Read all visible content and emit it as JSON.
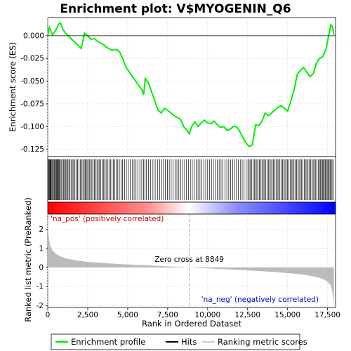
{
  "chart_data": {
    "type": "line",
    "title": "Enrichment plot: V$MYOGENIN_Q6",
    "ylabel_top": "Enrichment score (ES)",
    "ylabel_bottom": "Ranked list metric (PreRanked)",
    "xlabel": "Rank in Ordered Dataset",
    "x_ticks": [
      0,
      2500,
      5000,
      7500,
      10000,
      12500,
      15000,
      17500
    ],
    "x_tick_labels": [
      "0",
      "2,500",
      "5,000",
      "7,500",
      "10,000",
      "12,500",
      "15,000",
      "17,500"
    ],
    "es_y_ticks": [
      0.0,
      -0.025,
      -0.05,
      -0.075,
      -0.1,
      -0.125
    ],
    "es_y_tick_labels": [
      "0.000",
      "-0.025",
      "-0.050",
      "-0.075",
      "-0.100",
      "-0.125"
    ],
    "metric_y_ticks": [
      2,
      1,
      0,
      -1,
      -2
    ],
    "metric_y_tick_labels": [
      "2",
      "1",
      "0",
      "-1",
      "-2"
    ],
    "xlim": [
      0,
      18000
    ],
    "es_ylim": [
      -0.133,
      0.02
    ],
    "metric_ylim": [
      -2.1,
      2.8
    ],
    "total_genes": 17900,
    "zero_cross": 8849,
    "zero_cross_label": "Zero cross at 8849",
    "pos_label": "'na_pos' (positively correlated)",
    "neg_label": "'na_neg' (negatively correlated)",
    "enrichment_profile": {
      "x": [
        0,
        100,
        300,
        500,
        700,
        800,
        950,
        1100,
        1300,
        1500,
        1700,
        1900,
        2100,
        2300,
        2500,
        2700,
        2900,
        3100,
        3300,
        3500,
        3700,
        3900,
        4100,
        4300,
        4500,
        4700,
        4900,
        5100,
        5300,
        5500,
        5700,
        5900,
        6000,
        6100,
        6300,
        6500,
        6700,
        6900,
        7100,
        7300,
        7500,
        7700,
        7900,
        8100,
        8300,
        8500,
        8700,
        8849,
        9000,
        9200,
        9400,
        9600,
        9800,
        10000,
        10200,
        10400,
        10600,
        10800,
        11000,
        11200,
        11400,
        11600,
        11800,
        12000,
        12200,
        12400,
        12600,
        12800,
        13000,
        13200,
        13400,
        13600,
        13800,
        14000,
        14200,
        14400,
        14600,
        14800,
        15000,
        15200,
        15400,
        15600,
        15800,
        16000,
        16200,
        16400,
        16600,
        16800,
        17000,
        17200,
        17400,
        17600,
        17700,
        17800,
        17900
      ],
      "y": [
        0.0,
        0.009,
        0.001,
        0.006,
        0.013,
        0.014,
        0.007,
        0.003,
        0.0,
        -0.004,
        -0.007,
        -0.011,
        -0.014,
        0.003,
        0.0,
        -0.004,
        -0.003,
        -0.006,
        -0.008,
        -0.01,
        -0.013,
        -0.015,
        -0.016,
        -0.015,
        -0.018,
        -0.026,
        -0.035,
        -0.04,
        -0.045,
        -0.05,
        -0.055,
        -0.06,
        -0.065,
        -0.047,
        -0.052,
        -0.062,
        -0.072,
        -0.082,
        -0.085,
        -0.08,
        -0.082,
        -0.085,
        -0.088,
        -0.09,
        -0.092,
        -0.1,
        -0.104,
        -0.108,
        -0.1,
        -0.095,
        -0.1,
        -0.096,
        -0.093,
        -0.096,
        -0.097,
        -0.094,
        -0.098,
        -0.101,
        -0.1,
        -0.104,
        -0.103,
        -0.1,
        -0.1,
        -0.105,
        -0.112,
        -0.118,
        -0.122,
        -0.12,
        -0.098,
        -0.099,
        -0.094,
        -0.085,
        -0.088,
        -0.085,
        -0.082,
        -0.079,
        -0.077,
        -0.08,
        -0.083,
        -0.072,
        -0.06,
        -0.043,
        -0.038,
        -0.035,
        -0.04,
        -0.045,
        -0.042,
        -0.03,
        -0.025,
        -0.023,
        -0.015,
        0.003,
        0.012,
        0.01,
        0.001
      ]
    },
    "hits": [
      20,
      70,
      110,
      140,
      170,
      210,
      260,
      310,
      360,
      410,
      460,
      520,
      560,
      600,
      640,
      680,
      720,
      780,
      840,
      900,
      980,
      1040,
      1110,
      1180,
      1250,
      1320,
      1390,
      1460,
      1540,
      1620,
      1700,
      1780,
      1860,
      1950,
      2040,
      2120,
      2200,
      2280,
      2340,
      2400,
      2460,
      2520,
      2600,
      2680,
      2760,
      2840,
      2920,
      3000,
      3080,
      3160,
      3240,
      3320,
      3400,
      3480,
      3560,
      3650,
      3740,
      3830,
      3920,
      4010,
      4100,
      4190,
      4280,
      4380,
      4480,
      4580,
      4680,
      4800,
      4920,
      5040,
      5160,
      5280,
      5400,
      5520,
      5640,
      5760,
      5880,
      6000,
      6080,
      6160,
      6300,
      6440,
      6580,
      6720,
      6860,
      7000,
      7120,
      7240,
      7360,
      7480,
      7600,
      7720,
      7840,
      7960,
      8080,
      8200,
      8320,
      8440,
      8560,
      8680,
      8800,
      8920,
      9040,
      9160,
      9280,
      9400,
      9520,
      9640,
      9760,
      9880,
      10000,
      10120,
      10240,
      10360,
      10480,
      10600,
      10720,
      10840,
      10960,
      11080,
      11200,
      11320,
      11440,
      11560,
      11680,
      11800,
      11920,
      12040,
      12160,
      12280,
      12400,
      12520,
      12600,
      12680,
      12760,
      12840,
      12920,
      13000,
      13080,
      13160,
      13240,
      13320,
      13400,
      13480,
      13560,
      13640,
      13720,
      13800,
      13880,
      13960,
      14040,
      14120,
      14200,
      14280,
      14360,
      14440,
      14520,
      14600,
      14680,
      14760,
      14840,
      14920,
      15000,
      15080,
      15160,
      15240,
      15320,
      15400,
      15480,
      15560,
      15640,
      15720,
      15800,
      15880,
      15960,
      16040,
      16120,
      16200,
      16280,
      16360,
      16440,
      16520,
      16600,
      16680,
      16760,
      16840,
      16920,
      17000,
      17060,
      17120,
      17180,
      17240,
      17300,
      17360,
      17420,
      17480,
      17540,
      17600,
      17660,
      17720,
      17780,
      17840
    ],
    "ranked_metric": {
      "x": [
        0,
        50,
        150,
        300,
        500,
        800,
        1200,
        1800,
        2500,
        3500,
        4500,
        5500,
        6500,
        7500,
        8400,
        8849,
        9500,
        10500,
        11500,
        12500,
        13500,
        14500,
        15500,
        16200,
        16800,
        17200,
        17500,
        17700,
        17800,
        17850,
        17900
      ],
      "y": [
        2.65,
        1.7,
        1.15,
        0.9,
        0.72,
        0.58,
        0.46,
        0.37,
        0.29,
        0.23,
        0.18,
        0.14,
        0.1,
        0.06,
        0.02,
        0.0,
        -0.03,
        -0.07,
        -0.11,
        -0.15,
        -0.2,
        -0.26,
        -0.33,
        -0.4,
        -0.5,
        -0.6,
        -0.75,
        -0.95,
        -1.25,
        -1.6,
        -1.9
      ]
    },
    "colors": {
      "profile": "#00ee00",
      "hits": "#000000",
      "metric_fill": "#bbbbbb",
      "pos_text": "#cc0000",
      "neg_text": "#0000cc",
      "pos_bar": "#ff0000",
      "neg_bar": "#0000ff",
      "grid": "#dddddd"
    },
    "legend": [
      {
        "label": "Enrichment profile",
        "symbol": "line-green"
      },
      {
        "label": "Hits",
        "symbol": "line-black"
      },
      {
        "label": "Ranking metric scores",
        "symbol": "line-gray"
      }
    ]
  }
}
